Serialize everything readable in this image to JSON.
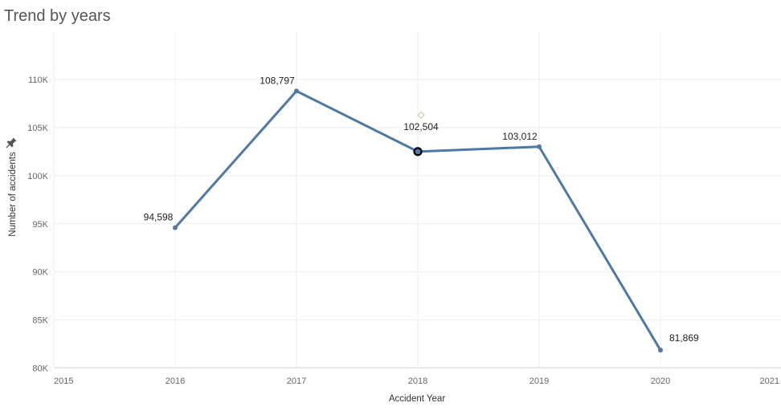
{
  "page": {
    "title": "Trend by years"
  },
  "icons": {
    "pin": "pin-icon"
  },
  "colors": {
    "line": "#4e79a7",
    "grid": "#eeeeee",
    "highlight": "#000000",
    "marker": "#c9c9a3"
  },
  "chart_data": {
    "type": "line",
    "title": "Trend by years",
    "xlabel": "Accident Year",
    "ylabel": "Number of accidents",
    "xlim": [
      2015,
      2021
    ],
    "ylim": [
      79500,
      114500
    ],
    "x_ticks": [
      2015,
      2016,
      2017,
      2018,
      2019,
      2020,
      2021
    ],
    "y_ticks": [
      80000,
      85000,
      90000,
      95000,
      100000,
      105000,
      110000
    ],
    "y_tick_labels": [
      "80K",
      "85K",
      "90K",
      "95K",
      "100K",
      "105K",
      "110K"
    ],
    "grid": true,
    "series": [
      {
        "x": [
          2016,
          2017,
          2018,
          2019,
          2020
        ],
        "values": [
          94598,
          108797,
          102504,
          103012,
          81869
        ],
        "labels": [
          "94,598",
          "108,797",
          "102,504",
          "103,012",
          "81,869"
        ]
      }
    ],
    "highlighted_point": 2018,
    "reference_marker": {
      "x": 2018,
      "y": 106300
    }
  }
}
